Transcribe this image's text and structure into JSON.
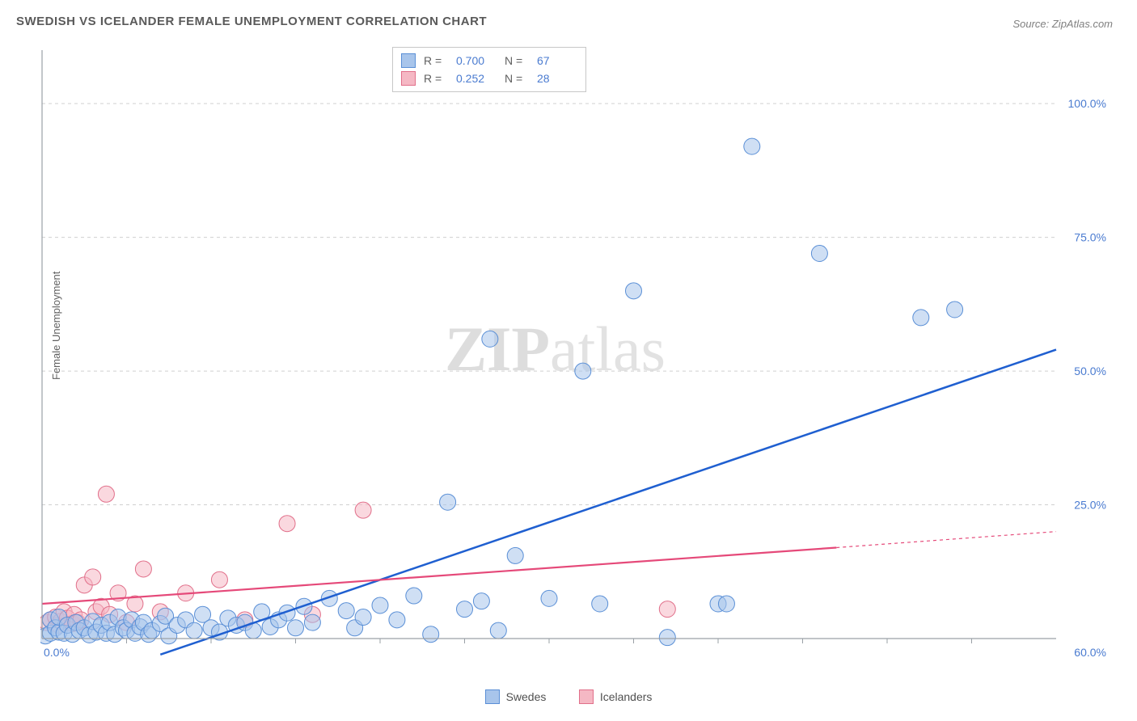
{
  "title": "SWEDISH VS ICELANDER FEMALE UNEMPLOYMENT CORRELATION CHART",
  "source": "Source: ZipAtlas.com",
  "y_axis_label": "Female Unemployment",
  "watermark": {
    "part1": "ZIP",
    "part2": "atlas"
  },
  "chart": {
    "type": "scatter",
    "background_color": "#ffffff",
    "grid_color": "#d0d0d0",
    "axis_color": "#9aa0a6",
    "label_color": "#4a7bd0",
    "xlim": [
      0,
      60
    ],
    "ylim": [
      0,
      110
    ],
    "x_tick_labels": [
      "0.0%",
      "60.0%"
    ],
    "x_tick_positions": [
      0,
      60
    ],
    "x_minor_ticks": [
      5,
      10,
      15,
      20,
      25,
      30,
      35,
      40,
      45,
      50,
      55
    ],
    "y_tick_labels": [
      "25.0%",
      "50.0%",
      "75.0%",
      "100.0%"
    ],
    "y_tick_positions": [
      25,
      50,
      75,
      100
    ],
    "marker_radius": 10,
    "title_fontsize": 15,
    "label_fontsize": 13,
    "tick_fontsize": 14
  },
  "series": {
    "swedes": {
      "label": "Swedes",
      "fill": "#a8c5eb",
      "stroke": "#5a8fd6",
      "trend_color": "#1f5fd0",
      "trend_width": 2.5,
      "trend": {
        "x1": 7,
        "y1": -3,
        "x2": 60,
        "y2": 54
      },
      "points": [
        [
          0.2,
          0.5
        ],
        [
          0.5,
          1
        ],
        [
          0.5,
          3.5
        ],
        [
          0.8,
          2
        ],
        [
          1,
          1.2
        ],
        [
          1,
          4
        ],
        [
          1.3,
          1
        ],
        [
          1.5,
          2.5
        ],
        [
          1.8,
          0.8
        ],
        [
          2,
          3
        ],
        [
          2.2,
          1.5
        ],
        [
          2.5,
          2
        ],
        [
          2.8,
          0.7
        ],
        [
          3,
          3.2
        ],
        [
          3.2,
          1.2
        ],
        [
          3.5,
          2.5
        ],
        [
          3.8,
          1
        ],
        [
          4,
          3
        ],
        [
          4.3,
          0.8
        ],
        [
          4.5,
          4
        ],
        [
          4.8,
          2
        ],
        [
          5,
          1.5
        ],
        [
          5.3,
          3.5
        ],
        [
          5.5,
          1
        ],
        [
          5.8,
          2.2
        ],
        [
          6,
          3
        ],
        [
          6.3,
          0.8
        ],
        [
          6.5,
          1.5
        ],
        [
          7,
          2.8
        ],
        [
          7.3,
          4.2
        ],
        [
          7.5,
          0.5
        ],
        [
          8,
          2.5
        ],
        [
          8.5,
          3.5
        ],
        [
          9,
          1.5
        ],
        [
          9.5,
          4.5
        ],
        [
          10,
          2
        ],
        [
          10.5,
          1.2
        ],
        [
          11,
          3.8
        ],
        [
          11.5,
          2.5
        ],
        [
          12,
          3
        ],
        [
          12.5,
          1.5
        ],
        [
          13,
          5
        ],
        [
          13.5,
          2.2
        ],
        [
          14,
          3.5
        ],
        [
          14.5,
          4.8
        ],
        [
          15,
          2
        ],
        [
          15.5,
          6
        ],
        [
          16,
          3
        ],
        [
          17,
          7.5
        ],
        [
          18,
          5.2
        ],
        [
          18.5,
          2
        ],
        [
          19,
          4
        ],
        [
          20,
          6.2
        ],
        [
          21,
          3.5
        ],
        [
          22,
          8
        ],
        [
          23,
          0.8
        ],
        [
          24,
          25.5
        ],
        [
          25,
          5.5
        ],
        [
          26,
          7
        ],
        [
          26.5,
          56
        ],
        [
          27,
          1.5
        ],
        [
          28,
          15.5
        ],
        [
          30,
          7.5
        ],
        [
          32,
          50
        ],
        [
          33,
          6.5
        ],
        [
          35,
          65
        ],
        [
          37,
          0.2
        ],
        [
          40,
          6.5
        ],
        [
          40.5,
          6.5
        ],
        [
          42,
          92
        ],
        [
          46,
          72
        ],
        [
          52,
          60
        ],
        [
          54,
          61.5
        ]
      ]
    },
    "icelanders": {
      "label": "Icelanders",
      "fill": "#f5b8c4",
      "stroke": "#e16f8a",
      "trend_color": "#e54979",
      "trend_width": 2.2,
      "trend": {
        "x1": 0,
        "y1": 6.5,
        "x2": 47,
        "y2": 17
      },
      "trend_dash": {
        "x1": 47,
        "y1": 17,
        "x2": 60,
        "y2": 20
      },
      "points": [
        [
          0.3,
          3
        ],
        [
          0.5,
          3.5
        ],
        [
          0.8,
          4
        ],
        [
          1,
          2.5
        ],
        [
          1.1,
          3.2
        ],
        [
          1.3,
          5
        ],
        [
          1.5,
          3.8
        ],
        [
          1.8,
          2.8
        ],
        [
          1.9,
          4.5
        ],
        [
          2.1,
          3
        ],
        [
          2.3,
          3.5
        ],
        [
          2.5,
          10
        ],
        [
          3,
          11.5
        ],
        [
          3.2,
          5
        ],
        [
          3.5,
          6
        ],
        [
          3.8,
          27
        ],
        [
          4,
          4.5
        ],
        [
          4.5,
          8.5
        ],
        [
          5,
          3
        ],
        [
          5.5,
          6.5
        ],
        [
          6,
          13
        ],
        [
          7,
          5
        ],
        [
          8.5,
          8.5
        ],
        [
          10.5,
          11
        ],
        [
          12,
          3.5
        ],
        [
          14.5,
          21.5
        ],
        [
          16,
          4.5
        ],
        [
          19,
          24
        ],
        [
          37,
          5.5
        ]
      ]
    }
  },
  "stats": {
    "rows": [
      {
        "swatch": "swedes",
        "r_label": "R =",
        "r": "0.700",
        "n_label": "N =",
        "n": "67"
      },
      {
        "swatch": "icelanders",
        "r_label": "R =",
        "r": "0.252",
        "n_label": "N =",
        "n": "28"
      }
    ]
  },
  "legend": [
    {
      "swatch": "swedes",
      "label": "Swedes"
    },
    {
      "swatch": "icelanders",
      "label": "Icelanders"
    }
  ]
}
